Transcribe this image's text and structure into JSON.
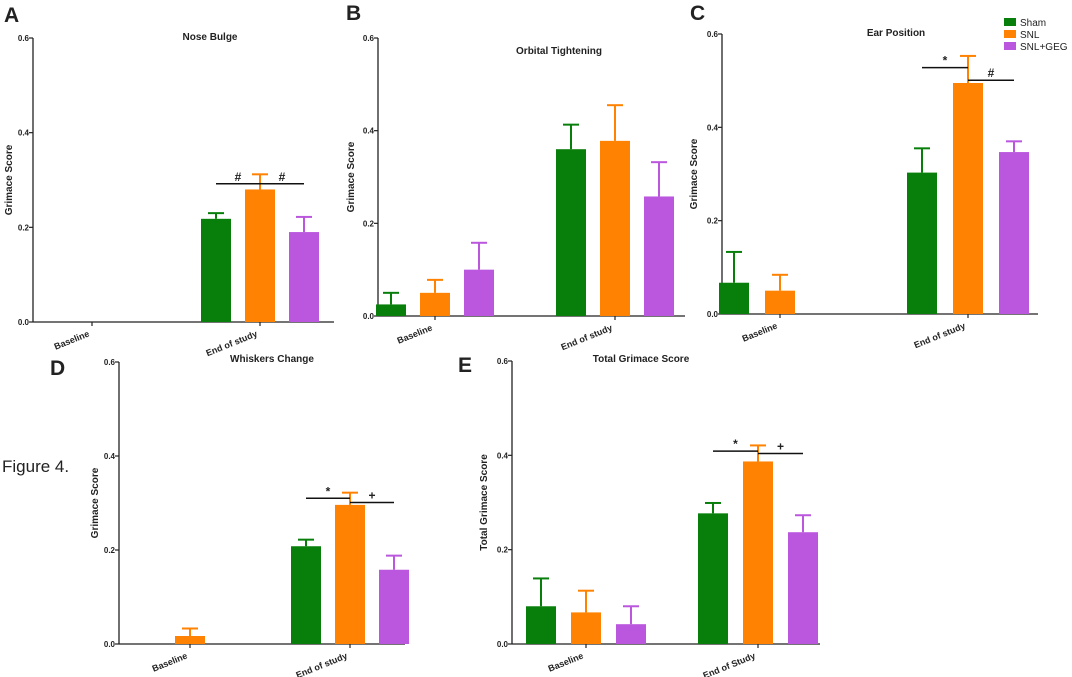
{
  "figure_label": "Figure 4.",
  "legend": [
    {
      "name": "Sham",
      "color": "#097f0b"
    },
    {
      "name": "SNL",
      "color": "#ff8202"
    },
    {
      "name": "SNL+GEG",
      "color": "#bb57de"
    }
  ],
  "chart_data": [
    {
      "panel": "A",
      "type": "bar",
      "title": "Nose Bulge",
      "ylabel": "Grimace Score",
      "ylim": [
        0,
        0.6
      ],
      "yticks": [
        "0.0",
        "0.2",
        "0.4",
        "0.6"
      ],
      "categories": [
        "Baseline",
        "End of study"
      ],
      "series": [
        {
          "name": "Sham",
          "values": [
            0.0,
            0.218
          ],
          "errors": [
            0,
            0.012
          ]
        },
        {
          "name": "SNL",
          "values": [
            0.0,
            0.28
          ],
          "errors": [
            0,
            0.032
          ]
        },
        {
          "name": "SNL+GEG",
          "values": [
            0.0,
            0.19
          ],
          "errors": [
            0,
            0.032
          ]
        }
      ],
      "significance": [
        {
          "category": 1,
          "from": 0,
          "to": 1,
          "symbol": "#",
          "y": 0.292
        },
        {
          "category": 1,
          "from": 1,
          "to": 2,
          "symbol": "#",
          "y": 0.292
        }
      ]
    },
    {
      "panel": "B",
      "type": "bar",
      "title": "Orbital Tightening",
      "ylabel": "Grimace Score",
      "ylim": [
        0,
        0.6
      ],
      "yticks": [
        "0.0",
        "0.2",
        "0.4",
        "0.6"
      ],
      "categories": [
        "Baseline",
        "End of study"
      ],
      "series": [
        {
          "name": "Sham",
          "values": [
            0.025,
            0.36
          ],
          "errors": [
            0.025,
            0.053
          ]
        },
        {
          "name": "SNL",
          "values": [
            0.05,
            0.378
          ],
          "errors": [
            0.028,
            0.077
          ]
        },
        {
          "name": "SNL+GEG",
          "values": [
            0.1,
            0.258
          ],
          "errors": [
            0.058,
            0.074
          ]
        }
      ],
      "significance": []
    },
    {
      "panel": "C",
      "type": "bar",
      "title": "Ear Position",
      "ylabel": "Grimace Score",
      "ylim": [
        0,
        0.6
      ],
      "yticks": [
        "0.0",
        "0.2",
        "0.4",
        "0.6"
      ],
      "categories": [
        "Baseline",
        "End of study"
      ],
      "series": [
        {
          "name": "Sham",
          "values": [
            0.067,
            0.303
          ],
          "errors": [
            0.066,
            0.052
          ]
        },
        {
          "name": "SNL",
          "values": [
            0.05,
            0.495
          ],
          "errors": [
            0.034,
            0.058
          ]
        },
        {
          "name": "SNL+GEG",
          "values": [
            0.0,
            0.347
          ],
          "errors": [
            0,
            0.023
          ]
        }
      ],
      "significance": [
        {
          "category": 1,
          "from": 0,
          "to": 1,
          "symbol": "*",
          "y": 0.528
        },
        {
          "category": 1,
          "from": 1,
          "to": 2,
          "symbol": "#",
          "y": 0.501
        }
      ]
    },
    {
      "panel": "D",
      "type": "bar",
      "title": "Whiskers Change",
      "ylabel": "Grimace Score",
      "ylim": [
        0,
        0.6
      ],
      "yticks": [
        "0.0",
        "0.2",
        "0.4",
        "0.6"
      ],
      "categories": [
        "Baseline",
        "End of study"
      ],
      "series": [
        {
          "name": "Sham",
          "values": [
            0.0,
            0.208
          ],
          "errors": [
            0,
            0.014
          ]
        },
        {
          "name": "SNL",
          "values": [
            0.017,
            0.296
          ],
          "errors": [
            0.016,
            0.026
          ]
        },
        {
          "name": "SNL+GEG",
          "values": [
            0.0,
            0.158
          ],
          "errors": [
            0,
            0.03
          ]
        }
      ],
      "significance": [
        {
          "category": 1,
          "from": 0,
          "to": 1,
          "symbol": "*",
          "y": 0.31
        },
        {
          "category": 1,
          "from": 1,
          "to": 2,
          "symbol": "+",
          "y": 0.301
        }
      ]
    },
    {
      "panel": "E",
      "type": "bar",
      "title": "Total Grimace Score",
      "ylabel": "Total Grimace Score",
      "ylim": [
        0,
        0.6
      ],
      "yticks": [
        "0.0",
        "0.2",
        "0.4",
        "0.6"
      ],
      "categories": [
        "Baseline",
        "End of Study"
      ],
      "series": [
        {
          "name": "Sham",
          "values": [
            0.08,
            0.277
          ],
          "errors": [
            0.059,
            0.022
          ]
        },
        {
          "name": "SNL",
          "values": [
            0.067,
            0.387
          ],
          "errors": [
            0.046,
            0.034
          ]
        },
        {
          "name": "SNL+GEG",
          "values": [
            0.042,
            0.237
          ],
          "errors": [
            0.038,
            0.036
          ]
        }
      ],
      "significance": [
        {
          "category": 1,
          "from": 0,
          "to": 1,
          "symbol": "*",
          "y": 0.409
        },
        {
          "category": 1,
          "from": 1,
          "to": 2,
          "symbol": "+",
          "y": 0.404
        }
      ]
    }
  ]
}
